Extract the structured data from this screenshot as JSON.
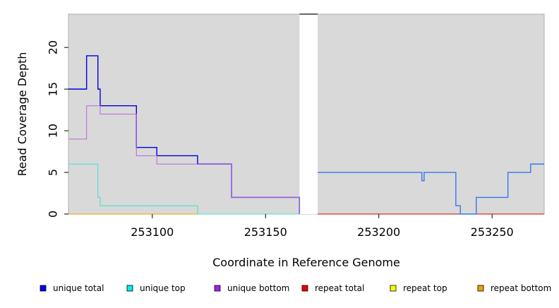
{
  "chart_data": {
    "type": "line",
    "title": "",
    "xlabel": "Coordinate in Reference Genome",
    "ylabel": "Read Coverage Depth",
    "xlim": [
      253063,
      253273
    ],
    "ylim": [
      0,
      24
    ],
    "x_ticks": [
      253100,
      253150,
      253200,
      253250
    ],
    "y_ticks": [
      0,
      5,
      10,
      15,
      20
    ],
    "panel_background": "#d9d9d9",
    "gap_regions": [
      [
        253165,
        253173
      ]
    ],
    "legend_position": "bottom",
    "series": [
      {
        "name": "unique total",
        "color": "#0000dd",
        "steps": [
          [
            253063,
            15
          ],
          [
            253071,
            19
          ],
          [
            253076,
            15
          ],
          [
            253077,
            13
          ],
          [
            253093,
            8
          ],
          [
            253102,
            7
          ],
          [
            253120,
            6
          ],
          [
            253135,
            2
          ],
          [
            253165,
            0
          ]
        ]
      },
      {
        "name": "unique top",
        "color": "#40e0d0",
        "steps": [
          [
            253063,
            6
          ],
          [
            253076,
            2
          ],
          [
            253077,
            1
          ],
          [
            253120,
            0
          ],
          [
            253165,
            0
          ]
        ]
      },
      {
        "name": "unique bottom",
        "color": "#bb66dd",
        "steps": [
          [
            253063,
            9
          ],
          [
            253071,
            13
          ],
          [
            253077,
            12
          ],
          [
            253093,
            7
          ],
          [
            253102,
            6
          ],
          [
            253135,
            2
          ],
          [
            253165,
            0
          ]
        ]
      },
      {
        "name": "repeat total",
        "color": "#dd0000",
        "steps": [
          [
            253173,
            0
          ],
          [
            253273,
            0
          ]
        ]
      },
      {
        "name": "repeat top",
        "color": "#eeee00",
        "steps": []
      },
      {
        "name": "repeat bottom",
        "color": "#ee9900",
        "steps": [
          [
            253063,
            0
          ],
          [
            253120,
            0
          ]
        ]
      },
      {
        "name": "",
        "color": "#3377ee",
        "steps": [
          [
            253173,
            5
          ],
          [
            253219,
            4
          ],
          [
            253220,
            5
          ],
          [
            253234,
            1
          ],
          [
            253236,
            0
          ],
          [
            253243,
            2
          ],
          [
            253257,
            5
          ],
          [
            253267,
            6
          ],
          [
            253273,
            6
          ]
        ]
      }
    ],
    "legend": [
      {
        "label": "unique total",
        "color": "#0000ee"
      },
      {
        "label": "unique top",
        "color": "#00eeee"
      },
      {
        "label": "unique bottom",
        "color": "#a020f0"
      },
      {
        "label": "repeat total",
        "color": "#ee0000"
      },
      {
        "label": "repeat top",
        "color": "#ffff00"
      },
      {
        "label": "repeat bottom",
        "color": "#eea000"
      }
    ]
  }
}
